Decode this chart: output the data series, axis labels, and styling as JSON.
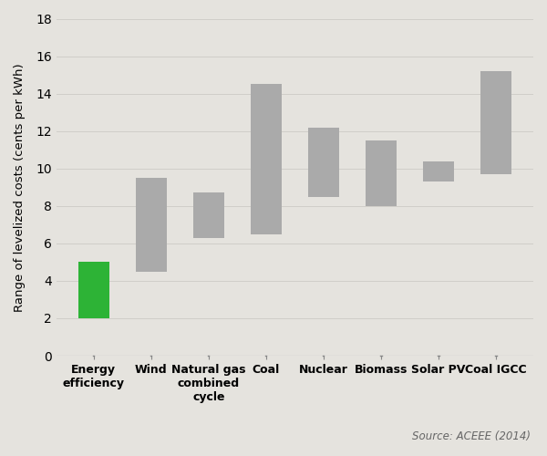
{
  "categories": [
    "Energy\nefficiency",
    "Wind",
    "Natural gas\ncombined\ncycle",
    "Coal",
    "Nuclear",
    "Biomass",
    "Solar PV",
    "Coal IGCC"
  ],
  "bar_bottoms": [
    2.0,
    4.5,
    6.3,
    6.5,
    8.5,
    8.0,
    9.3,
    9.7
  ],
  "bar_tops": [
    5.0,
    9.5,
    8.7,
    14.5,
    12.2,
    11.5,
    10.4,
    15.2
  ],
  "bar_colors": [
    "#2db336",
    "#aaaaaa",
    "#aaaaaa",
    "#aaaaaa",
    "#aaaaaa",
    "#aaaaaa",
    "#aaaaaa",
    "#aaaaaa"
  ],
  "ylabel": "Range of levelized costs (cents per kWh)",
  "ylim": [
    0,
    18
  ],
  "yticks": [
    0,
    2,
    4,
    6,
    8,
    10,
    12,
    14,
    16,
    18
  ],
  "background_color": "#e5e3de",
  "source_text": "Source: ACEEE (2014)",
  "bar_width": 0.55
}
